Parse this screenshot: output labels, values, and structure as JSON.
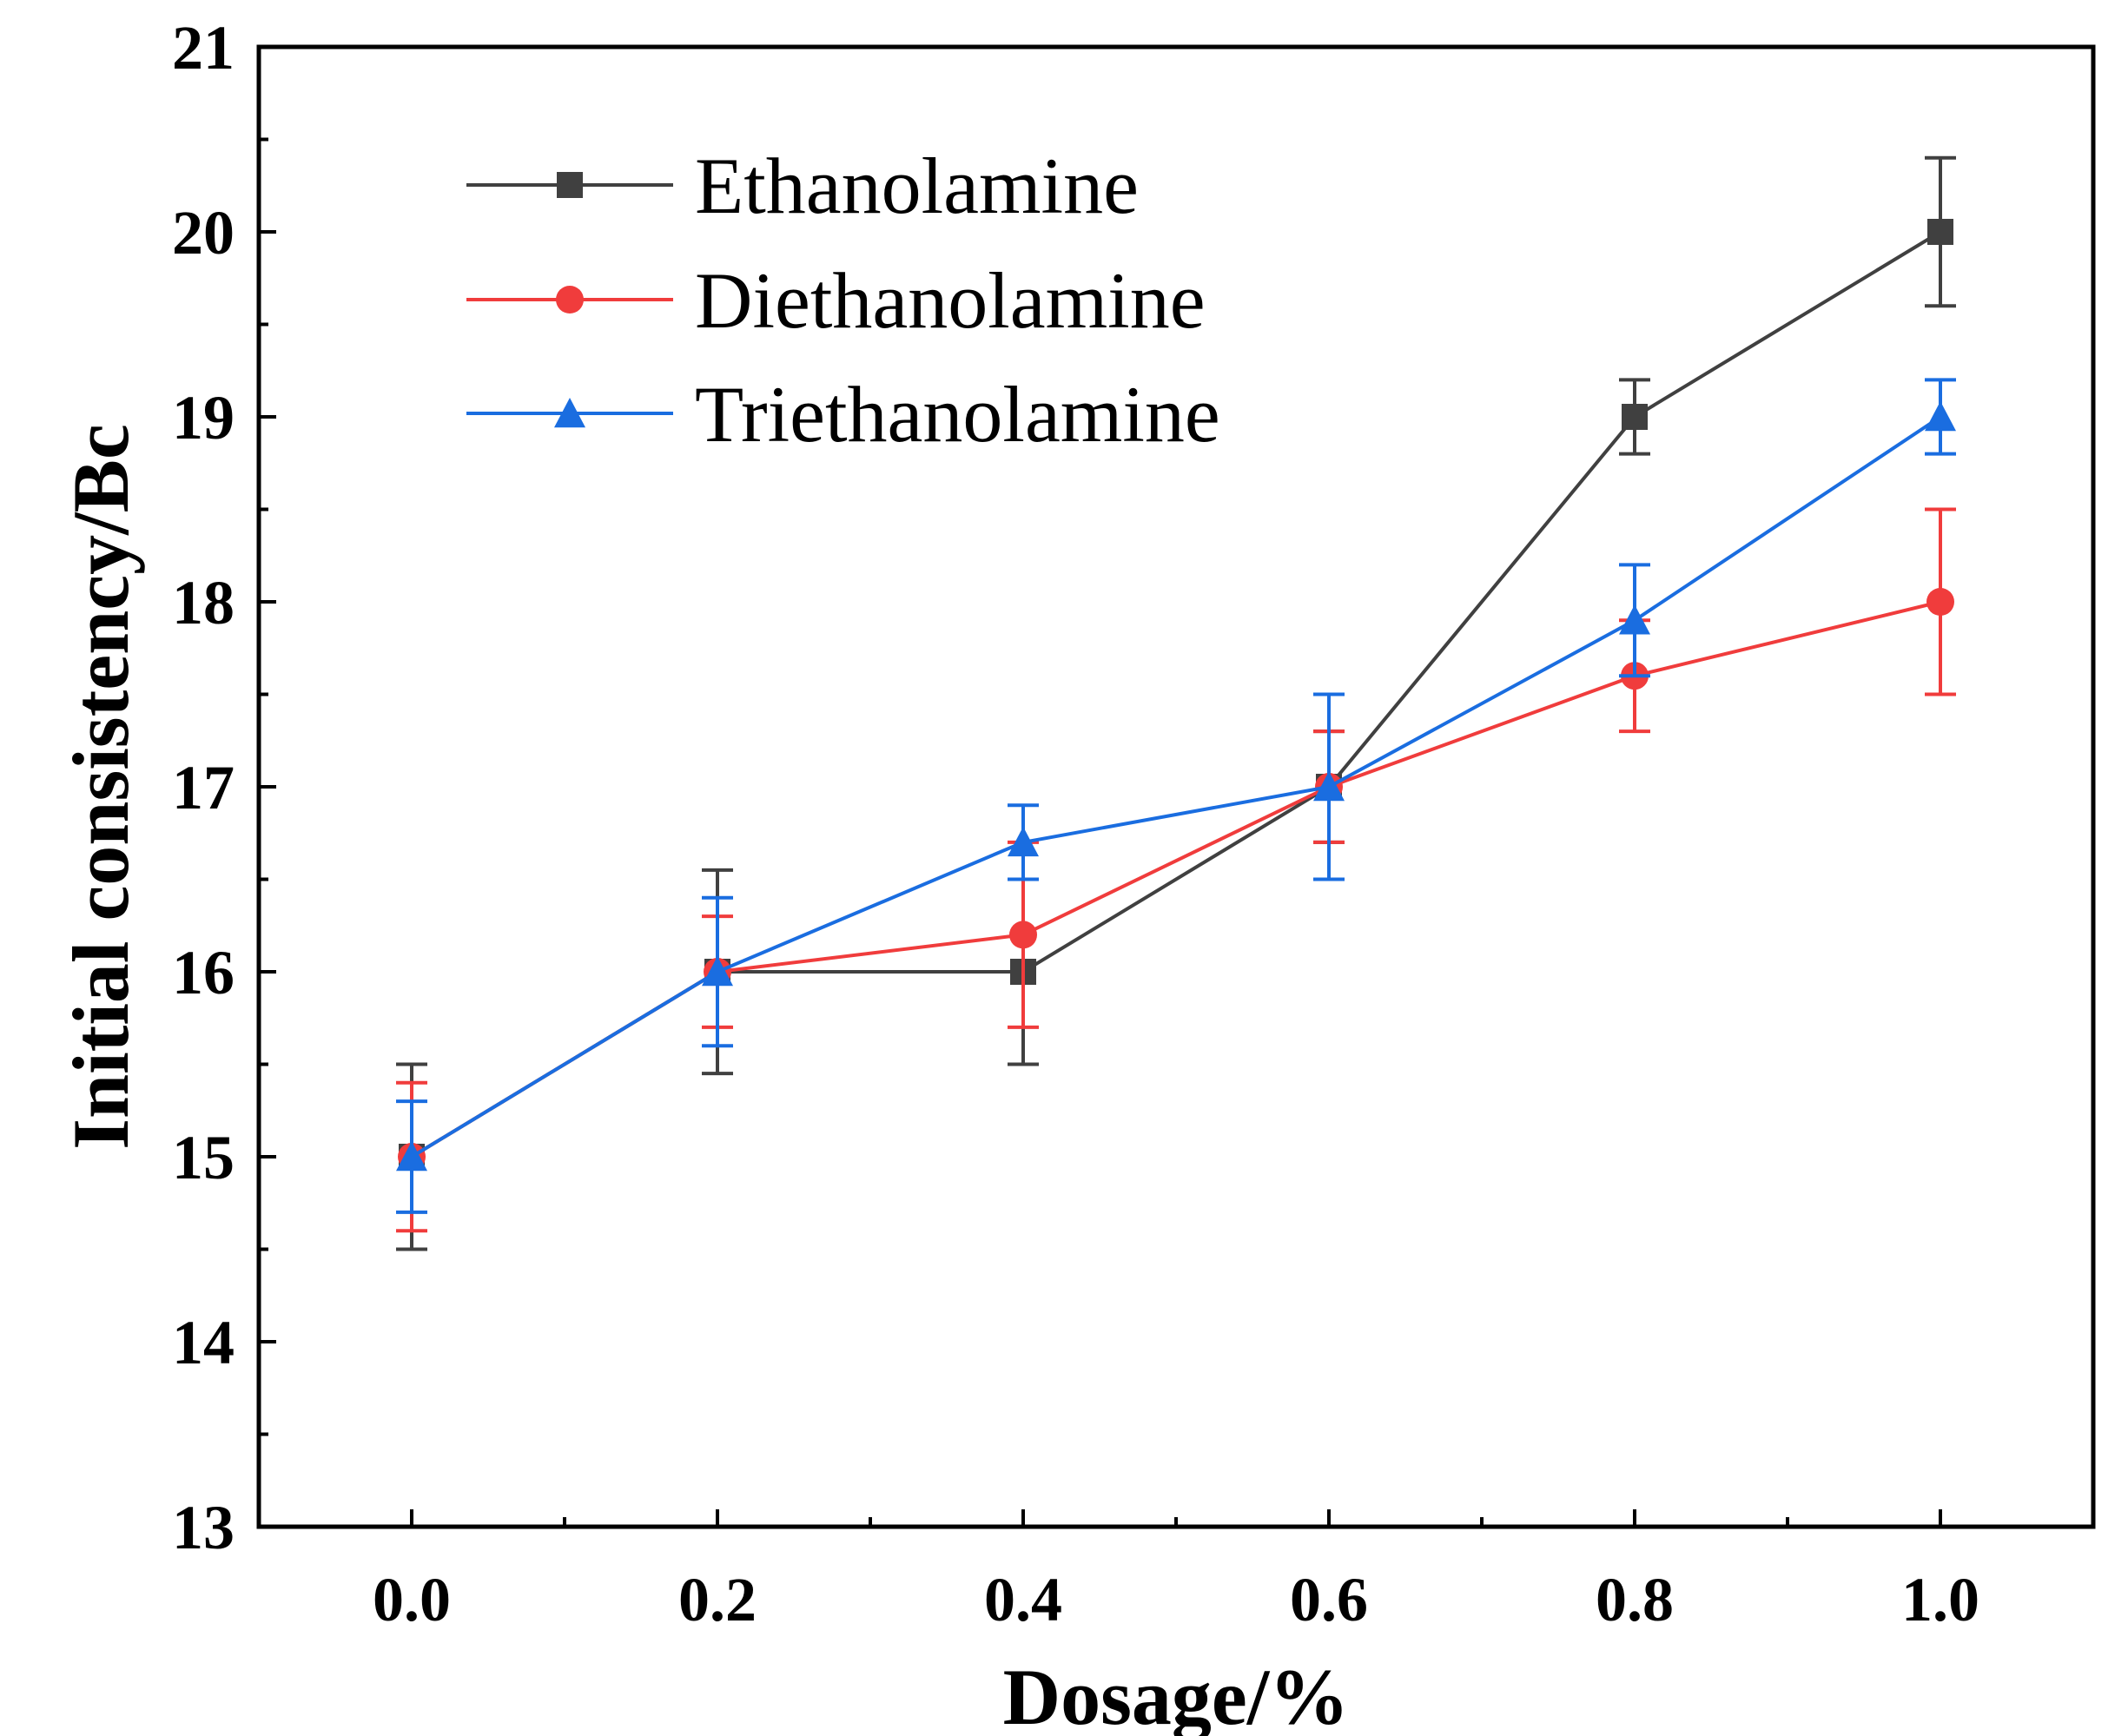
{
  "chart_data": {
    "type": "line",
    "title": "",
    "xlabel": "Dosage/%",
    "ylabel": "Initial consistency/Bc",
    "xlim": [
      -0.1,
      1.1
    ],
    "ylim": [
      13,
      21
    ],
    "xticks": [
      0.0,
      0.2,
      0.4,
      0.6,
      0.8,
      1.0
    ],
    "xtick_labels": [
      "0.0",
      "0.2",
      "0.4",
      "0.6",
      "0.8",
      "1.0"
    ],
    "yticks": [
      13,
      14,
      15,
      16,
      17,
      18,
      19,
      20,
      21
    ],
    "ytick_labels": [
      "13",
      "14",
      "15",
      "16",
      "17",
      "18",
      "19",
      "20",
      "21"
    ],
    "grid": false,
    "legend": {
      "position": "top-left"
    },
    "x": [
      0.0,
      0.2,
      0.4,
      0.6,
      0.8,
      1.0
    ],
    "series": [
      {
        "name": "Ethanolamine",
        "color": "#404040",
        "marker": "square",
        "values": [
          15,
          16,
          16,
          17,
          19,
          20
        ],
        "error": [
          0.5,
          0.55,
          0.5,
          0.3,
          0.2,
          0.4
        ]
      },
      {
        "name": "Diethanolamine",
        "color": "#f03c3c",
        "marker": "circle",
        "values": [
          15,
          16,
          16.2,
          17,
          17.6,
          18
        ],
        "error": [
          0.4,
          0.3,
          0.5,
          0.3,
          0.3,
          0.5
        ]
      },
      {
        "name": "Triethanolamine",
        "color": "#1a6de0",
        "marker": "triangle",
        "values": [
          15,
          16,
          16.7,
          17,
          17.9,
          19
        ],
        "error": [
          0.3,
          0.4,
          0.2,
          0.5,
          0.3,
          0.2
        ]
      }
    ]
  }
}
